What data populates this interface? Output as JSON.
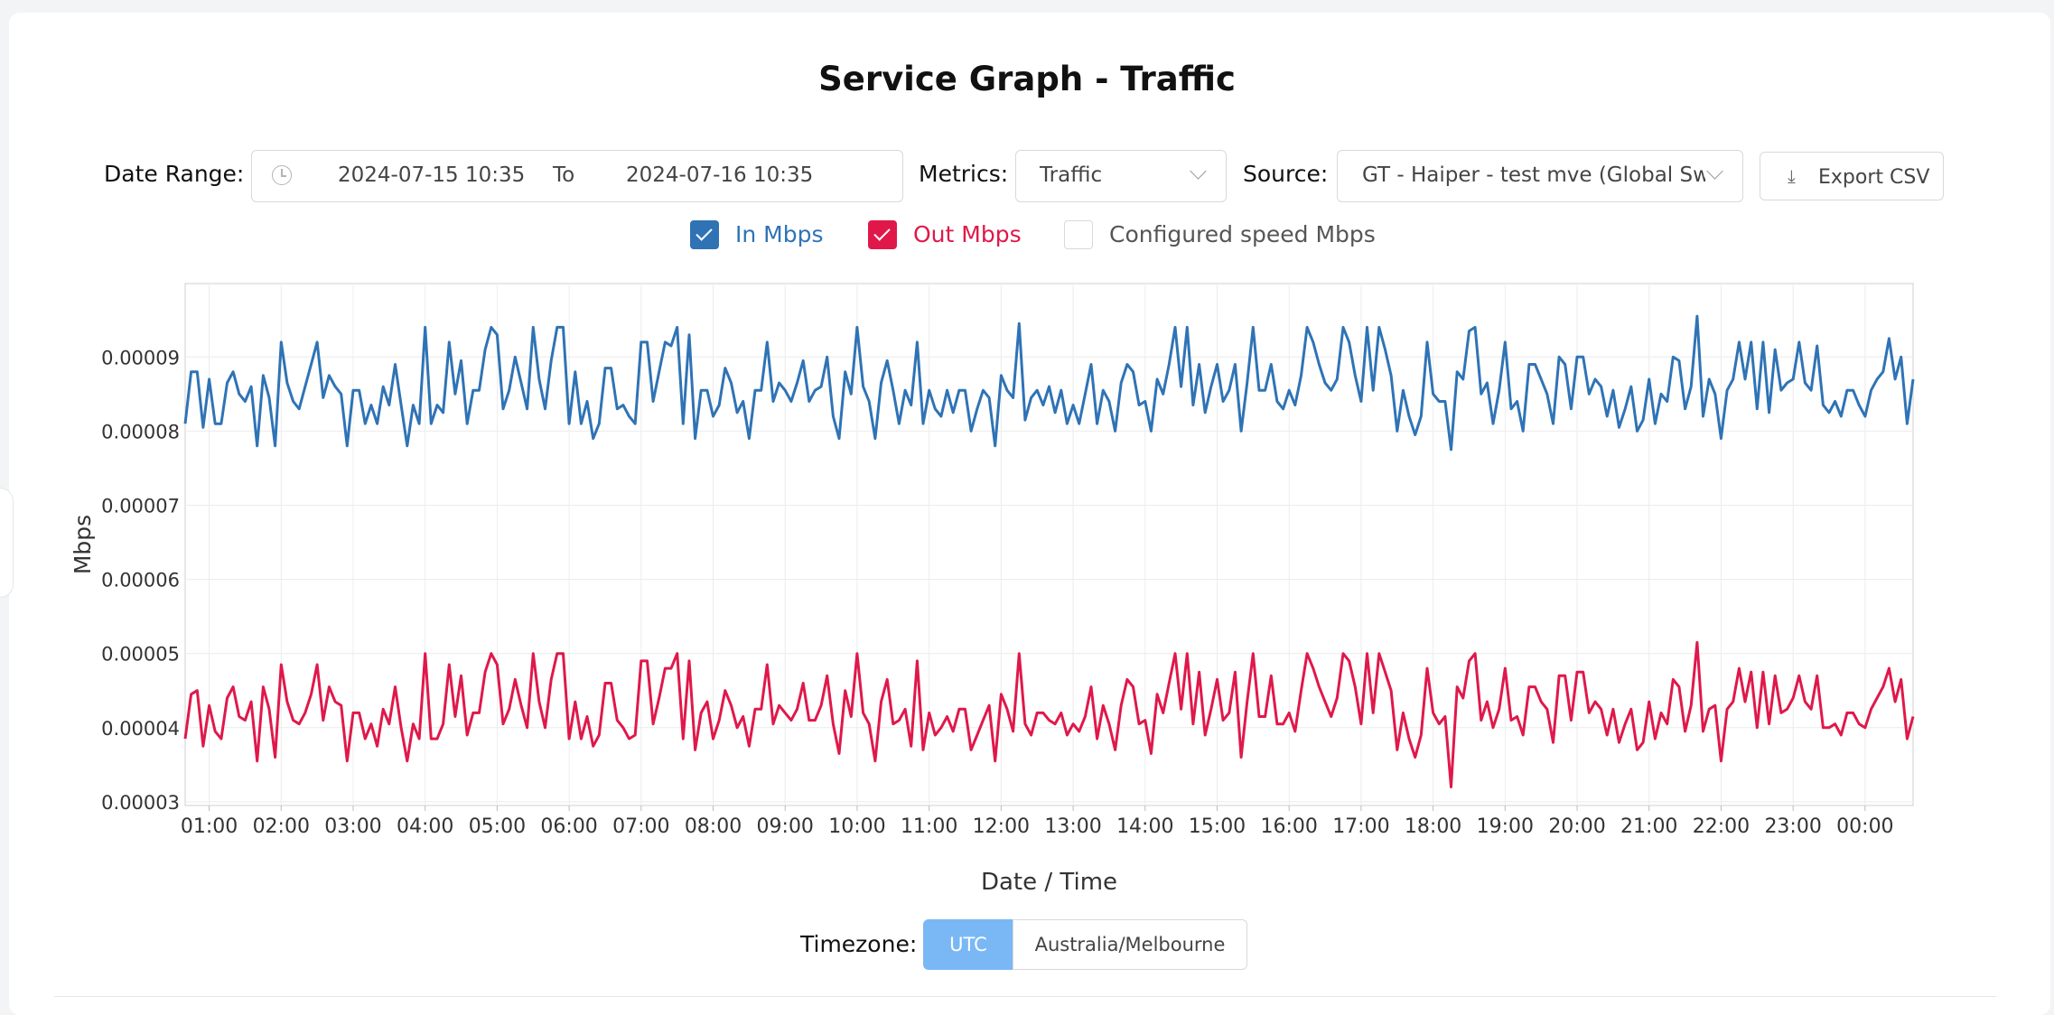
{
  "page": {
    "title": "Service Graph - Traffic"
  },
  "filters": {
    "date_range_label": "Date Range:",
    "date_from": "2024-07-15 10:35",
    "date_to_separator": "To",
    "date_to": "2024-07-16 10:35",
    "metrics_label": "Metrics:",
    "metrics_value": "Traffic",
    "source_label": "Source:",
    "source_value": "GT - Haiper - test mve (Global Switch",
    "export_label": "Export CSV"
  },
  "legend": {
    "in": {
      "label": "In Mbps",
      "checked": true,
      "color": "#2f73b5"
    },
    "out": {
      "label": "Out Mbps",
      "checked": true,
      "color": "#e0184a"
    },
    "configured": {
      "label": "Configured speed Mbps",
      "checked": false,
      "color": "#555555"
    }
  },
  "timezone": {
    "label": "Timezone:",
    "options": [
      "UTC",
      "Australia/Melbourne"
    ],
    "selected": "UTC"
  },
  "chart_data": {
    "type": "line",
    "xlabel": "Date / Time",
    "ylabel": "Mbps",
    "ylim": [
      2.95e-05,
      9.99e-05
    ],
    "x_ticks": [
      "01:00",
      "02:00",
      "03:00",
      "04:00",
      "05:00",
      "06:00",
      "07:00",
      "08:00",
      "09:00",
      "10:00",
      "11:00",
      "12:00",
      "13:00",
      "14:00",
      "15:00",
      "16:00",
      "17:00",
      "18:00",
      "19:00",
      "20:00",
      "21:00",
      "22:00",
      "23:00",
      "00:00"
    ],
    "y_ticks": [
      "0.00003",
      "0.00004",
      "0.00005",
      "0.00006",
      "0.00007",
      "0.00008",
      "0.00009"
    ],
    "grid": true,
    "x_start": "00:40",
    "x_end": "00:40 (+1 day)",
    "sample_interval_minutes": 5,
    "series": [
      {
        "name": "In Mbps",
        "color": "#2f73b5",
        "values": [
          8.1e-05,
          8.8e-05,
          8.8e-05,
          8.05e-05,
          8.7e-05,
          8.1e-05,
          8.1e-05,
          8.65e-05,
          8.8e-05,
          8.5e-05,
          8.4e-05,
          8.6e-05,
          7.8e-05,
          8.75e-05,
          8.45e-05,
          7.8e-05,
          9.2e-05,
          8.65e-05,
          8.4e-05,
          8.3e-05,
          8.6e-05,
          8.9e-05,
          9.2e-05,
          8.45e-05,
          8.75e-05,
          8.6e-05,
          8.5e-05,
          7.8e-05,
          8.55e-05,
          8.55e-05,
          8.1e-05,
          8.35e-05,
          8.1e-05,
          8.6e-05,
          8.35e-05,
          8.9e-05,
          8.35e-05,
          7.8e-05,
          8.35e-05,
          8.1e-05,
          9.4e-05,
          8.1e-05,
          8.35e-05,
          8.25e-05,
          9.2e-05,
          8.5e-05,
          8.95e-05,
          8.1e-05,
          8.55e-05,
          8.55e-05,
          9.1e-05,
          9.4e-05,
          9.3e-05,
          8.3e-05,
          8.55e-05,
          9e-05,
          8.65e-05,
          8.3e-05,
          9.4e-05,
          8.7e-05,
          8.3e-05,
          8.95e-05,
          9.4e-05,
          9.4e-05,
          8.1e-05,
          8.8e-05,
          8.1e-05,
          8.4e-05,
          7.9e-05,
          8.1e-05,
          8.85e-05,
          8.85e-05,
          8.3e-05,
          8.35e-05,
          8.2e-05,
          8.1e-05,
          9.2e-05,
          9.2e-05,
          8.4e-05,
          8.8e-05,
          9.2e-05,
          9.15e-05,
          9.4e-05,
          8.1e-05,
          9.3e-05,
          7.9e-05,
          8.55e-05,
          8.55e-05,
          8.2e-05,
          8.35e-05,
          8.85e-05,
          8.65e-05,
          8.25e-05,
          8.4e-05,
          7.9e-05,
          8.55e-05,
          8.55e-05,
          9.2e-05,
          8.4e-05,
          8.65e-05,
          8.55e-05,
          8.4e-05,
          8.65e-05,
          8.95e-05,
          8.4e-05,
          8.55e-05,
          8.6e-05,
          9e-05,
          8.2e-05,
          7.9e-05,
          8.8e-05,
          8.5e-05,
          9.4e-05,
          8.6e-05,
          8.4e-05,
          7.9e-05,
          8.65e-05,
          8.95e-05,
          8.55e-05,
          8.1e-05,
          8.55e-05,
          8.35e-05,
          9.2e-05,
          8.1e-05,
          8.55e-05,
          8.3e-05,
          8.2e-05,
          8.55e-05,
          8.25e-05,
          8.55e-05,
          8.55e-05,
          8e-05,
          8.3e-05,
          8.55e-05,
          8.45e-05,
          7.8e-05,
          8.75e-05,
          8.55e-05,
          8.45e-05,
          9.45e-05,
          8.15e-05,
          8.45e-05,
          8.55e-05,
          8.35e-05,
          8.6e-05,
          8.25e-05,
          8.55e-05,
          8.1e-05,
          8.35e-05,
          8.1e-05,
          8.5e-05,
          8.9e-05,
          8.1e-05,
          8.55e-05,
          8.4e-05,
          8e-05,
          8.65e-05,
          8.9e-05,
          8.8e-05,
          8.35e-05,
          8.4e-05,
          8e-05,
          8.7e-05,
          8.5e-05,
          8.9e-05,
          9.4e-05,
          8.6e-05,
          9.4e-05,
          8.35e-05,
          8.9e-05,
          8.25e-05,
          8.6e-05,
          8.9e-05,
          8.4e-05,
          8.55e-05,
          8.9e-05,
          8e-05,
          8.65e-05,
          9.4e-05,
          8.55e-05,
          8.55e-05,
          8.9e-05,
          8.4e-05,
          8.3e-05,
          8.55e-05,
          8.35e-05,
          8.75e-05,
          9.4e-05,
          9.2e-05,
          8.9e-05,
          8.65e-05,
          8.55e-05,
          8.7e-05,
          9.4e-05,
          9.2e-05,
          8.75e-05,
          8.4e-05,
          9.4e-05,
          8.55e-05,
          9.4e-05,
          9.1e-05,
          8.75e-05,
          8e-05,
          8.55e-05,
          8.2e-05,
          7.95e-05,
          8.2e-05,
          9.2e-05,
          8.5e-05,
          8.4e-05,
          8.4e-05,
          7.75e-05,
          8.8e-05,
          8.7e-05,
          9.35e-05,
          9.4e-05,
          8.5e-05,
          8.65e-05,
          8.1e-05,
          8.55e-05,
          9.2e-05,
          8.3e-05,
          8.4e-05,
          8e-05,
          8.9e-05,
          8.9e-05,
          8.7e-05,
          8.5e-05,
          8.1e-05,
          9e-05,
          8.9e-05,
          8.3e-05,
          9e-05,
          9e-05,
          8.5e-05,
          8.7e-05,
          8.6e-05,
          8.2e-05,
          8.55e-05,
          8.05e-05,
          8.3e-05,
          8.6e-05,
          8e-05,
          8.15e-05,
          8.7e-05,
          8.1e-05,
          8.5e-05,
          8.4e-05,
          9e-05,
          8.95e-05,
          8.3e-05,
          8.6e-05,
          9.55e-05,
          8.2e-05,
          8.7e-05,
          8.5e-05,
          7.9e-05,
          8.55e-05,
          8.7e-05,
          9.2e-05,
          8.7e-05,
          9.2e-05,
          8.3e-05,
          9.2e-05,
          8.25e-05,
          9.1e-05,
          8.55e-05,
          8.65e-05,
          8.7e-05,
          9.2e-05,
          8.65e-05,
          8.55e-05,
          9.15e-05,
          8.35e-05,
          8.25e-05,
          8.4e-05,
          8.2e-05,
          8.55e-05,
          8.55e-05,
          8.35e-05,
          8.2e-05,
          8.55e-05,
          8.7e-05,
          8.8e-05,
          9.25e-05,
          8.7e-05,
          9e-05,
          8.1e-05,
          8.7e-05
        ]
      },
      {
        "name": "Out Mbps",
        "color": "#e0184a",
        "values": [
          3.85e-05,
          4.45e-05,
          4.5e-05,
          3.75e-05,
          4.3e-05,
          3.95e-05,
          3.85e-05,
          4.4e-05,
          4.55e-05,
          4.15e-05,
          4.1e-05,
          4.35e-05,
          3.55e-05,
          4.55e-05,
          4.25e-05,
          3.6e-05,
          4.85e-05,
          4.35e-05,
          4.1e-05,
          4.05e-05,
          4.2e-05,
          4.45e-05,
          4.85e-05,
          4.1e-05,
          4.55e-05,
          4.35e-05,
          4.3e-05,
          3.55e-05,
          4.2e-05,
          4.2e-05,
          3.85e-05,
          4.05e-05,
          3.75e-05,
          4.25e-05,
          4.05e-05,
          4.55e-05,
          4e-05,
          3.55e-05,
          4.05e-05,
          3.85e-05,
          5e-05,
          3.85e-05,
          3.85e-05,
          4.05e-05,
          4.85e-05,
          4.15e-05,
          4.7e-05,
          3.9e-05,
          4.2e-05,
          4.2e-05,
          4.75e-05,
          5e-05,
          4.85e-05,
          4.05e-05,
          4.25e-05,
          4.65e-05,
          4.3e-05,
          4e-05,
          5e-05,
          4.35e-05,
          4e-05,
          4.65e-05,
          5e-05,
          5e-05,
          3.85e-05,
          4.35e-05,
          3.85e-05,
          4.15e-05,
          3.75e-05,
          3.9e-05,
          4.6e-05,
          4.6e-05,
          4.1e-05,
          4e-05,
          3.85e-05,
          3.9e-05,
          4.9e-05,
          4.9e-05,
          4.05e-05,
          4.4e-05,
          4.8e-05,
          4.8e-05,
          5e-05,
          3.85e-05,
          4.9e-05,
          3.7e-05,
          4.2e-05,
          4.35e-05,
          3.85e-05,
          4.1e-05,
          4.5e-05,
          4.3e-05,
          4e-05,
          4.15e-05,
          3.75e-05,
          4.25e-05,
          4.25e-05,
          4.85e-05,
          4.05e-05,
          4.3e-05,
          4.2e-05,
          4.1e-05,
          4.25e-05,
          4.6e-05,
          4.1e-05,
          4.1e-05,
          4.3e-05,
          4.7e-05,
          4.05e-05,
          3.65e-05,
          4.5e-05,
          4.15e-05,
          5e-05,
          4.2e-05,
          4.05e-05,
          3.55e-05,
          4.35e-05,
          4.65e-05,
          4.05e-05,
          4.1e-05,
          4.25e-05,
          3.75e-05,
          4.9e-05,
          3.7e-05,
          4.2e-05,
          3.9e-05,
          4e-05,
          4.15e-05,
          3.95e-05,
          4.25e-05,
          4.25e-05,
          3.7e-05,
          3.9e-05,
          4.1e-05,
          4.3e-05,
          3.55e-05,
          4.45e-05,
          4.25e-05,
          3.95e-05,
          5e-05,
          4.05e-05,
          3.9e-05,
          4.2e-05,
          4.2e-05,
          4.1e-05,
          4.05e-05,
          4.2e-05,
          3.9e-05,
          4.05e-05,
          3.95e-05,
          4.15e-05,
          4.55e-05,
          3.85e-05,
          4.3e-05,
          4.05e-05,
          3.7e-05,
          4.3e-05,
          4.65e-05,
          4.55e-05,
          4.05e-05,
          4.1e-05,
          3.65e-05,
          4.45e-05,
          4.2e-05,
          4.6e-05,
          5e-05,
          4.25e-05,
          5e-05,
          4.05e-05,
          4.75e-05,
          3.9e-05,
          4.25e-05,
          4.65e-05,
          4.1e-05,
          4.2e-05,
          4.75e-05,
          3.6e-05,
          4.35e-05,
          5e-05,
          4.15e-05,
          4.15e-05,
          4.7e-05,
          4.05e-05,
          4.05e-05,
          4.2e-05,
          3.95e-05,
          4.5e-05,
          5e-05,
          4.8e-05,
          4.55e-05,
          4.35e-05,
          4.15e-05,
          4.4e-05,
          5e-05,
          4.9e-05,
          4.55e-05,
          4.05e-05,
          5e-05,
          4.2e-05,
          5e-05,
          4.75e-05,
          4.5e-05,
          3.7e-05,
          4.2e-05,
          3.85e-05,
          3.6e-05,
          3.9e-05,
          4.8e-05,
          4.2e-05,
          4.05e-05,
          4.15e-05,
          3.2e-05,
          4.55e-05,
          4.4e-05,
          4.9e-05,
          5e-05,
          4.1e-05,
          4.35e-05,
          4e-05,
          4.25e-05,
          4.8e-05,
          4.1e-05,
          4.15e-05,
          3.9e-05,
          4.55e-05,
          4.55e-05,
          4.35e-05,
          4.25e-05,
          3.8e-05,
          4.7e-05,
          4.7e-05,
          4.1e-05,
          4.75e-05,
          4.75e-05,
          4.2e-05,
          4.35e-05,
          4.25e-05,
          3.9e-05,
          4.25e-05,
          3.8e-05,
          4.05e-05,
          4.25e-05,
          3.7e-05,
          3.8e-05,
          4.35e-05,
          3.85e-05,
          4.2e-05,
          4.05e-05,
          4.65e-05,
          4.55e-05,
          3.95e-05,
          4.3e-05,
          5.15e-05,
          3.95e-05,
          4.25e-05,
          4.3e-05,
          3.55e-05,
          4.25e-05,
          4.35e-05,
          4.8e-05,
          4.35e-05,
          4.75e-05,
          4e-05,
          4.75e-05,
          4.05e-05,
          4.7e-05,
          4.2e-05,
          4.25e-05,
          4.4e-05,
          4.7e-05,
          4.35e-05,
          4.25e-05,
          4.7e-05,
          4e-05,
          4e-05,
          4.05e-05,
          3.9e-05,
          4.2e-05,
          4.2e-05,
          4.05e-05,
          4e-05,
          4.25e-05,
          4.4e-05,
          4.55e-05,
          4.8e-05,
          4.35e-05,
          4.65e-05,
          3.85e-05,
          4.15e-05
        ]
      }
    ]
  }
}
